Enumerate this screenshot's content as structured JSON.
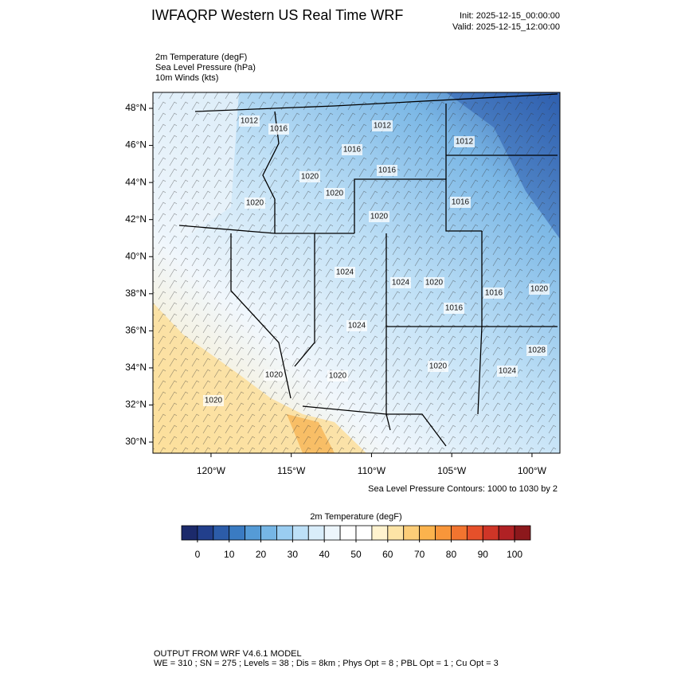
{
  "header": {
    "title": "IWFAQRP Western US Real Time WRF",
    "init": "Init: 2025-12-15_00:00:00",
    "valid": "Valid: 2025-12-15_12:00:00",
    "fields": [
      "2m Temperature   (degF)",
      "Sea Level Pressure   (hPa)",
      "10m Winds   (kts)"
    ]
  },
  "map": {
    "lon_range": [
      -123.62,
      -98.26
    ],
    "lat_range": [
      29.4,
      48.86
    ],
    "lat_ticks": [
      {
        "value": 48,
        "label": "48°N"
      },
      {
        "value": 46,
        "label": "46°N"
      },
      {
        "value": 44,
        "label": "44°N"
      },
      {
        "value": 42,
        "label": "42°N"
      },
      {
        "value": 40,
        "label": "40°N"
      },
      {
        "value": 38,
        "label": "38°N"
      },
      {
        "value": 36,
        "label": "36°N"
      },
      {
        "value": 34,
        "label": "34°N"
      },
      {
        "value": 32,
        "label": "32°N"
      },
      {
        "value": 30,
        "label": "30°N"
      }
    ],
    "lon_ticks": [
      {
        "value": -120,
        "label": "120°W"
      },
      {
        "value": -115,
        "label": "115°W"
      },
      {
        "value": -110,
        "label": "110°W"
      },
      {
        "value": -105,
        "label": "105°W"
      },
      {
        "value": -100,
        "label": "100°W"
      }
    ],
    "contour_labels": [
      "1012",
      "1016",
      "1012",
      "1016",
      "1012",
      "1016",
      "1020",
      "1020",
      "1020",
      "1016",
      "1020",
      "1024",
      "1024",
      "1020",
      "1016",
      "1016",
      "1020",
      "1024",
      "1028",
      "1020",
      "1024",
      "1020",
      "1020",
      "1020"
    ],
    "contour_note": "Sea Level Pressure Contours: 1000 to 1030 by 2"
  },
  "colorbar": {
    "title": "2m Temperature  (degF)",
    "range": [
      -5,
      105
    ],
    "colors": [
      "#1c2a6b",
      "#223f8c",
      "#2c5ca9",
      "#3a7bc2",
      "#559bd6",
      "#76b6e5",
      "#9acdf1",
      "#bde0f7",
      "#d9edfa",
      "#edf6fc",
      "#ffffff",
      "#ffffff",
      "#fff3cf",
      "#fde4a6",
      "#fccd78",
      "#fbb34d",
      "#f8963a",
      "#f2742f",
      "#e6502a",
      "#cf3527",
      "#b02124",
      "#8c181c"
    ],
    "ticks": [
      0,
      10,
      20,
      30,
      40,
      50,
      60,
      70,
      80,
      90,
      100
    ]
  },
  "footer": [
    "OUTPUT FROM WRF V4.6.1 MODEL",
    "WE = 310 ; SN = 275 ; Levels = 38 ; Dis = 8km ; Phys Opt = 8 ; PBL Opt = 1 ; Cu Opt = 3"
  ]
}
